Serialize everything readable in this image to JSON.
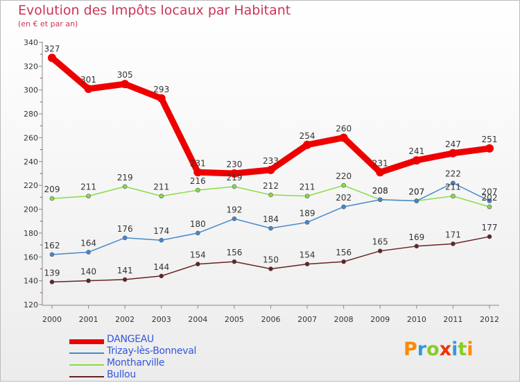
{
  "chart_data": {
    "type": "line",
    "title": "Evolution des Impôts locaux par Habitant",
    "subtitle": "(en € et par an)",
    "x": [
      2000,
      2001,
      2002,
      2003,
      2004,
      2005,
      2006,
      2007,
      2008,
      2009,
      2010,
      2011,
      2012
    ],
    "ylim": [
      120,
      340
    ],
    "yticks": [
      120,
      140,
      160,
      180,
      200,
      220,
      240,
      260,
      280,
      300,
      320,
      340
    ],
    "grid": false,
    "series": [
      {
        "name": "DANGEAU",
        "color": "#ee0000",
        "values": [
          327,
          301,
          305,
          293,
          231,
          230,
          233,
          254,
          260,
          231,
          241,
          247,
          251
        ]
      },
      {
        "name": "Trizay-lès-Bonneval",
        "color": "#4488cc",
        "values": [
          162,
          164,
          176,
          174,
          180,
          192,
          184,
          189,
          202,
          208,
          207,
          222,
          207
        ]
      },
      {
        "name": "Montharville",
        "color": "#88dd44",
        "values": [
          209,
          211,
          219,
          211,
          216,
          219,
          212,
          211,
          220,
          208,
          207,
          211,
          202
        ]
      },
      {
        "name": "Bullou",
        "color": "#662222",
        "values": [
          139,
          140,
          141,
          144,
          154,
          156,
          150,
          154,
          156,
          165,
          169,
          171,
          177
        ]
      }
    ]
  },
  "brand": {
    "name": "Proxiti",
    "letters": [
      "P",
      "r",
      "o",
      "x",
      "i",
      "t",
      "i"
    ]
  }
}
